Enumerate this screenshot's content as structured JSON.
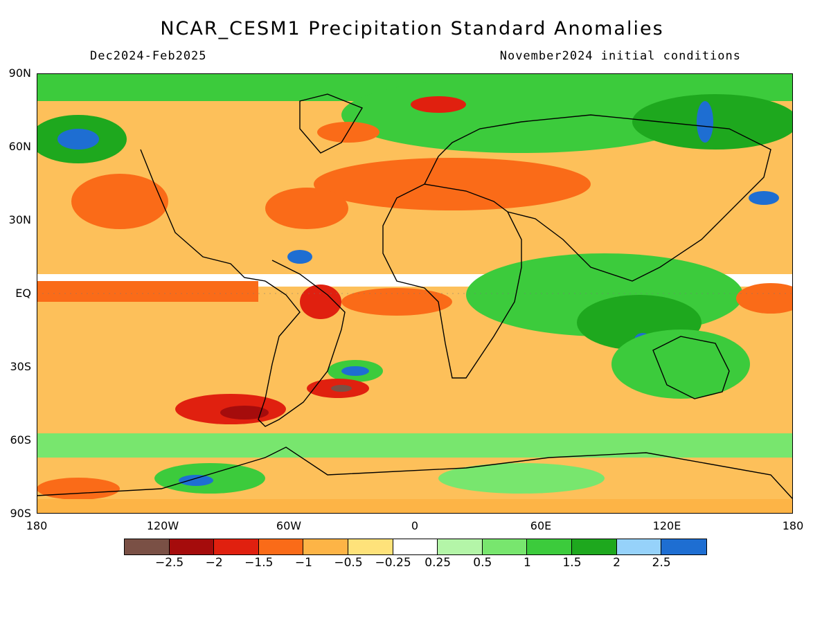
{
  "header": {
    "title": "NCAR_CESM1 Precipitation Standard Anomalies",
    "period": "Dec2024-Feb2025",
    "init": "November2024 initial conditions"
  },
  "axes": {
    "lat_labels": [
      "90N",
      "60N",
      "30N",
      "EQ",
      "30S",
      "60S",
      "90S"
    ],
    "lon_labels": [
      "180",
      "120W",
      "60W",
      "0",
      "60E",
      "120E",
      "180"
    ]
  },
  "legend": {
    "colors": [
      "#7a5045",
      "#a50c0c",
      "#e0200f",
      "#fa6b18",
      "#fdb446",
      "#fee27a",
      "#ffffff",
      "#b4f5a8",
      "#78e66e",
      "#3ccb3c",
      "#1ea81e",
      "#96d2fa",
      "#1e6ed2"
    ],
    "labels": [
      "-2.5",
      "-2",
      "-1.5",
      "-1",
      "-0.5",
      "-0.25",
      "0.25",
      "0.5",
      "1",
      "1.5",
      "2",
      "2.5"
    ]
  }
}
